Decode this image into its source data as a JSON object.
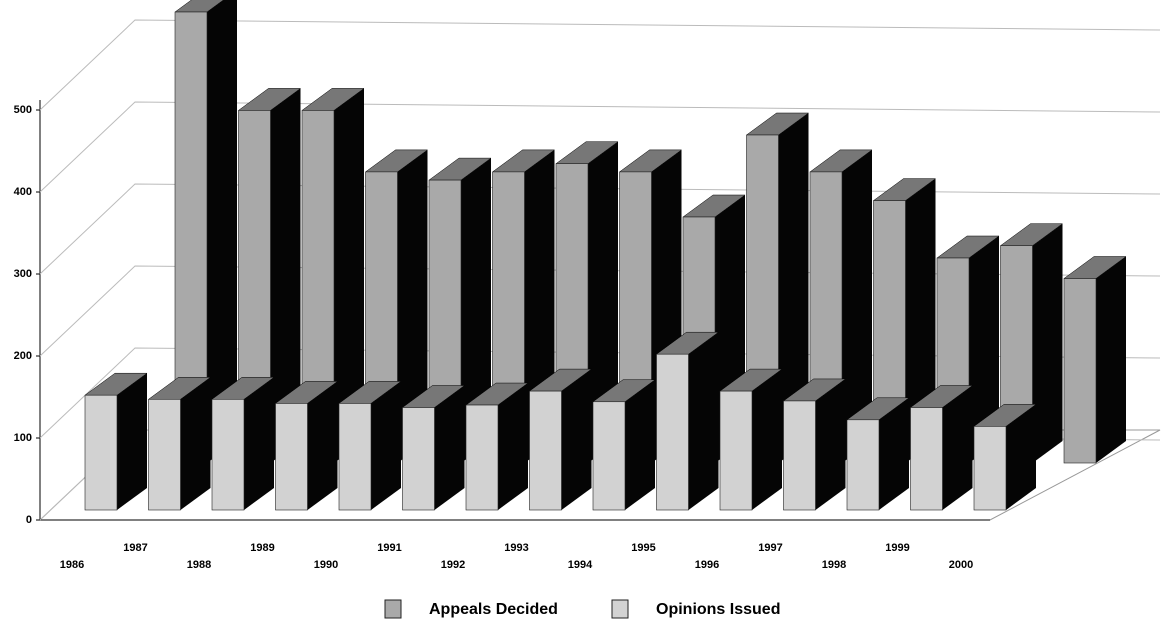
{
  "chart_data": {
    "type": "bar3d",
    "categories": [
      "1986",
      "1987",
      "1988",
      "1989",
      "1990",
      "1991",
      "1992",
      "1993",
      "1994",
      "1995",
      "1996",
      "1997",
      "1998",
      "1999",
      "2000"
    ],
    "series": [
      {
        "name": "Appeals Decided",
        "color": "#a9a9a9",
        "values": [
          550,
          430,
          430,
          355,
          345,
          355,
          365,
          355,
          300,
          400,
          355,
          320,
          250,
          265,
          225
        ]
      },
      {
        "name": "Opinions Issued",
        "color": "#d2d2d2",
        "values": [
          140,
          135,
          135,
          130,
          130,
          125,
          128,
          145,
          132,
          190,
          145,
          133,
          110,
          125,
          102
        ]
      }
    ],
    "ylim": [
      0,
      500
    ],
    "yticks": [
      0,
      100,
      200,
      300,
      400,
      500
    ],
    "grid": true
  }
}
